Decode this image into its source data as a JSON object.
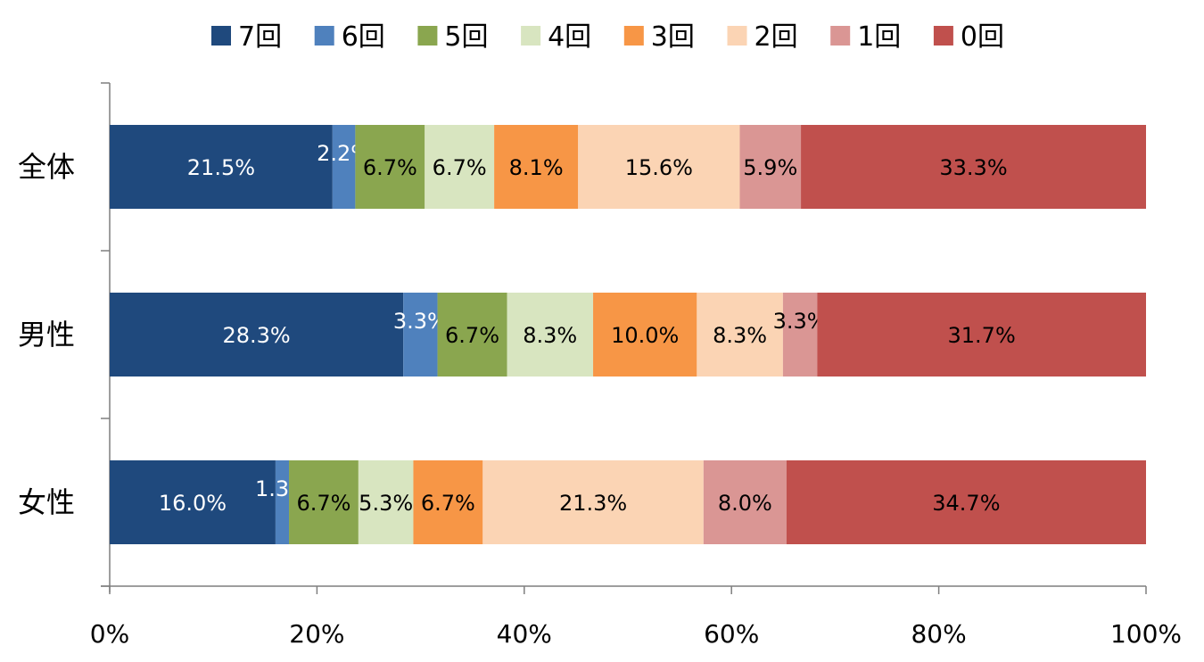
{
  "chart_data": {
    "type": "bar",
    "orientation": "horizontal",
    "stacked": true,
    "percent_stacked": true,
    "categories": [
      "全体",
      "男性",
      "女性"
    ],
    "series": [
      {
        "name": "7回",
        "color": "#1f497d",
        "label_color": "#ffffff",
        "values": [
          21.5,
          28.3,
          16.0
        ],
        "labels": [
          "21.5%",
          "28.3%",
          "16.0%"
        ]
      },
      {
        "name": "6回",
        "color": "#4f81bd",
        "label_color": "#ffffff",
        "values": [
          2.2,
          3.3,
          1.3
        ],
        "labels": [
          "2.2%",
          "3.3%",
          "1.3%"
        ]
      },
      {
        "name": "5回",
        "color": "#8aa64f",
        "label_color": "#000000",
        "values": [
          6.7,
          6.7,
          6.7
        ],
        "labels": [
          "6.7%",
          "6.7%",
          "6.7%"
        ]
      },
      {
        "name": "4回",
        "color": "#d8e5c0",
        "label_color": "#000000",
        "values": [
          6.7,
          8.3,
          5.3
        ],
        "labels": [
          "6.7%",
          "8.3%",
          "5.3%"
        ]
      },
      {
        "name": "3回",
        "color": "#f79646",
        "label_color": "#000000",
        "values": [
          8.1,
          10.0,
          6.7
        ],
        "labels": [
          "8.1%",
          "10.0%",
          "6.7%"
        ]
      },
      {
        "name": "2回",
        "color": "#fbd4b4",
        "label_color": "#000000",
        "values": [
          15.6,
          8.3,
          21.3
        ],
        "labels": [
          "15.6%",
          "8.3%",
          "21.3%"
        ]
      },
      {
        "name": "1回",
        "color": "#da9694",
        "label_color": "#000000",
        "values": [
          5.9,
          3.3,
          8.0
        ],
        "labels": [
          "5.9%",
          "3.3%",
          "8.0%"
        ]
      },
      {
        "name": "0回",
        "color": "#c0504d",
        "label_color": "#000000",
        "values": [
          33.3,
          31.7,
          34.7
        ],
        "labels": [
          "33.3%",
          "31.7%",
          "34.7%"
        ]
      }
    ],
    "xlim": [
      0,
      100
    ],
    "x_ticks": [
      0,
      20,
      40,
      60,
      80,
      100
    ],
    "x_tick_labels": [
      "0%",
      "20%",
      "40%",
      "60%",
      "80%",
      "100%"
    ],
    "title": "",
    "xlabel": "",
    "ylabel": "",
    "grid": false,
    "legend_position": "top"
  }
}
